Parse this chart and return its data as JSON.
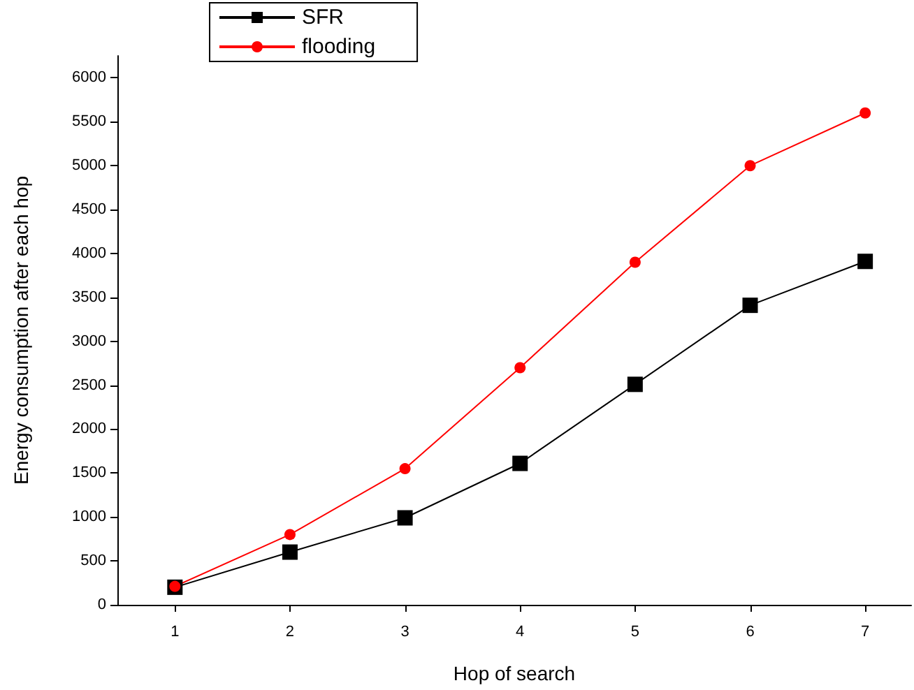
{
  "chart_data": {
    "type": "line",
    "xlabel": "Hop of search",
    "ylabel": "Energy consumption after each hop",
    "x": [
      1,
      2,
      3,
      4,
      5,
      6,
      7
    ],
    "series": [
      {
        "name": "SFR",
        "color": "#000000",
        "marker": "square",
        "values": [
          200,
          600,
          990,
          1610,
          2510,
          3410,
          3910
        ]
      },
      {
        "name": "flooding",
        "color": "#ff0000",
        "marker": "circle",
        "values": [
          210,
          800,
          1550,
          2700,
          3900,
          5000,
          5600
        ]
      }
    ],
    "xlim": [
      0.5,
      7.4
    ],
    "xticks": [
      1,
      2,
      3,
      4,
      5,
      6,
      7
    ],
    "ylim": [
      0,
      6250
    ],
    "yticks": [
      0,
      500,
      1000,
      1500,
      2000,
      2500,
      3000,
      3500,
      4000,
      4500,
      5000,
      5500,
      6000
    ],
    "grid": false,
    "legend": "top",
    "line_style": "solid"
  }
}
